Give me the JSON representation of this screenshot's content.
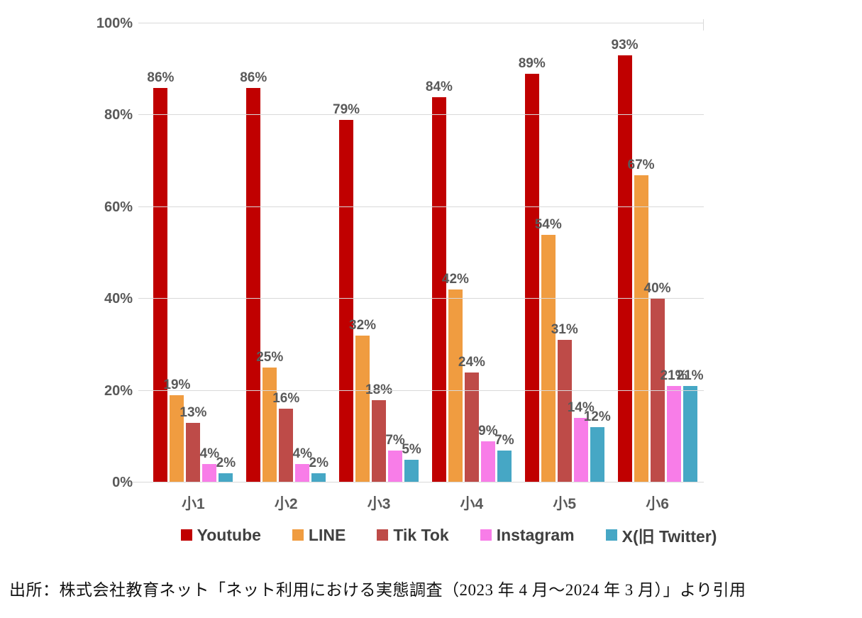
{
  "chart_data": {
    "type": "bar",
    "title": "",
    "categories": [
      "小1",
      "小2",
      "小3",
      "小4",
      "小5",
      "小6"
    ],
    "series": [
      {
        "name": "Youtube",
        "color": "#c00000",
        "values": [
          86,
          86,
          79,
          84,
          89,
          93
        ]
      },
      {
        "name": "LINE",
        "color": "#f09c40",
        "values": [
          19,
          25,
          32,
          42,
          54,
          67
        ]
      },
      {
        "name": "Tik Tok",
        "color": "#be4b48",
        "values": [
          13,
          16,
          18,
          24,
          31,
          40
        ]
      },
      {
        "name": "Instagram",
        "color": "#f87de8",
        "values": [
          4,
          4,
          7,
          9,
          14,
          21
        ]
      },
      {
        "name": "X(旧 Twitter)",
        "color": "#46a7c5",
        "values": [
          2,
          2,
          5,
          7,
          12,
          21
        ]
      }
    ],
    "xlabel": "",
    "ylabel": "",
    "ylim": [
      0,
      100
    ],
    "ytick_step": 20,
    "ytick_suffix": "%",
    "value_suffix": "%",
    "grid": true,
    "grid_color": "#d9d9d9",
    "label_color": "#595959",
    "legend_position": "bottom"
  },
  "caption": "出所：株式会社教育ネット「ネット利用における実態調査（2023 年 4 月～2024 年 3 月）」より引用"
}
